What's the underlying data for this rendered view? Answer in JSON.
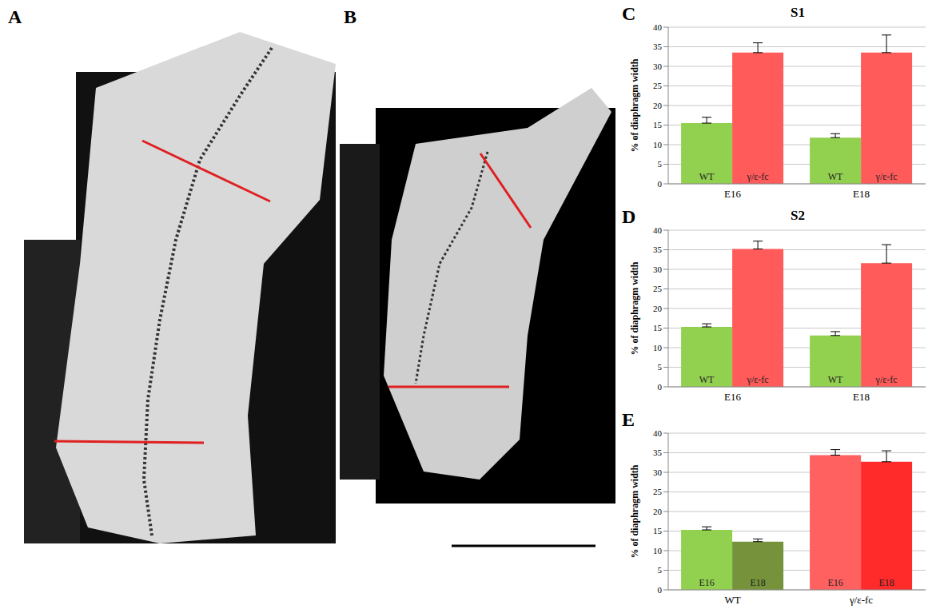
{
  "images": [
    {
      "panel": "A"
    },
    {
      "panel": "B"
    }
  ],
  "chart_data": [
    {
      "panel": "C",
      "type": "bar",
      "title": "S1",
      "categories": [
        "E16",
        "E18"
      ],
      "y_label": "% of diaphragm width",
      "ylim": [
        0,
        40
      ],
      "yticks": [
        0,
        5,
        10,
        15,
        20,
        25,
        30,
        35,
        40
      ],
      "grid": true,
      "series": [
        {
          "name": "WT",
          "color": "#92d050",
          "values": [
            15.5,
            11.8
          ],
          "errors": [
            1.5,
            1.0
          ]
        },
        {
          "name": "γ/ε-fc",
          "color": "#ff5b5b",
          "values": [
            33.5,
            33.5
          ],
          "errors": [
            2.5,
            4.5
          ]
        }
      ]
    },
    {
      "panel": "D",
      "type": "bar",
      "title": "S2",
      "categories": [
        "E16",
        "E18"
      ],
      "y_label": "% of diaphragm width",
      "ylim": [
        0,
        40
      ],
      "yticks": [
        0,
        5,
        10,
        15,
        20,
        25,
        30,
        35,
        40
      ],
      "grid": true,
      "series": [
        {
          "name": "WT",
          "color": "#92d050",
          "values": [
            15.3,
            13.1
          ],
          "errors": [
            0.8,
            1.0
          ]
        },
        {
          "name": "γ/ε-fc",
          "color": "#ff5b5b",
          "values": [
            35.2,
            31.6
          ],
          "errors": [
            2.0,
            4.7
          ]
        }
      ]
    },
    {
      "panel": "E",
      "type": "bar",
      "categories": [
        "WT",
        "γ/ε-fc"
      ],
      "y_label": "% of diaphragm width",
      "ylim": [
        0,
        40
      ],
      "yticks": [
        0,
        5,
        10,
        15,
        20,
        25,
        30,
        35,
        40
      ],
      "grid": true,
      "series": [
        {
          "name": "E16",
          "colors": [
            "#92d050",
            "#ff6060"
          ],
          "values": [
            15.3,
            34.4
          ],
          "errors": [
            0.8,
            1.4
          ]
        },
        {
          "name": "E18",
          "colors": [
            "#76933c",
            "#ff2a2a"
          ],
          "values": [
            12.3,
            32.7
          ],
          "errors": [
            0.7,
            2.8
          ]
        }
      ]
    }
  ]
}
